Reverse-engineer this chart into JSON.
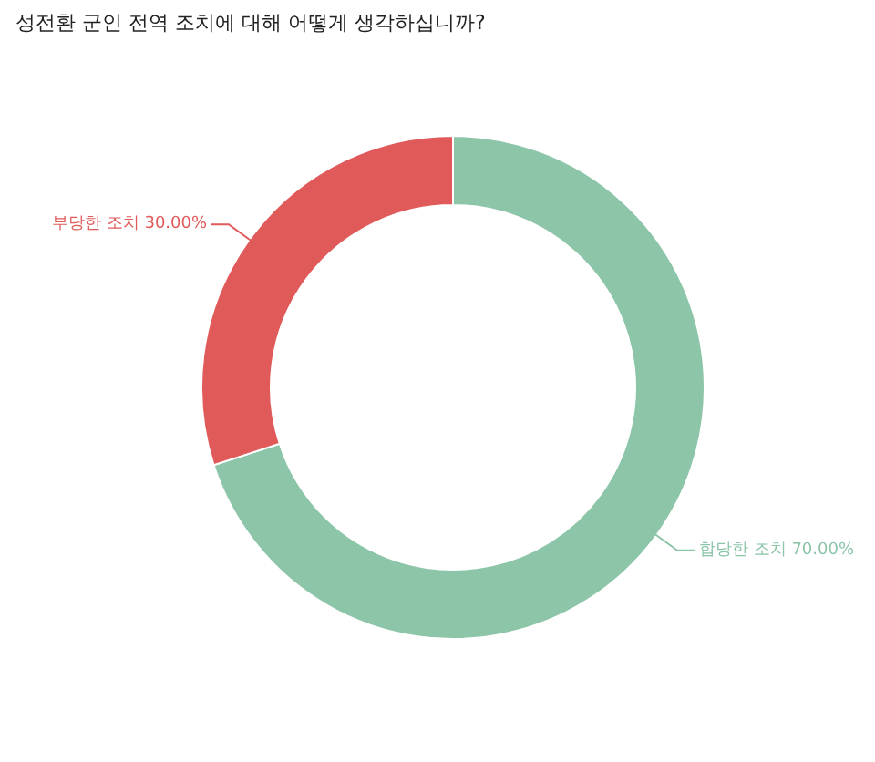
{
  "chart_data": {
    "type": "donut",
    "title": "성전환 군인 전역 조치에 대해 어떻게 생각하십니까?",
    "categories": [
      "합당한 조치",
      "부당한 조치"
    ],
    "values": [
      70,
      30
    ],
    "colors": [
      "#8cc5a8",
      "#e05a5a"
    ],
    "value_labels": [
      "70.00%",
      "30.00%"
    ]
  }
}
